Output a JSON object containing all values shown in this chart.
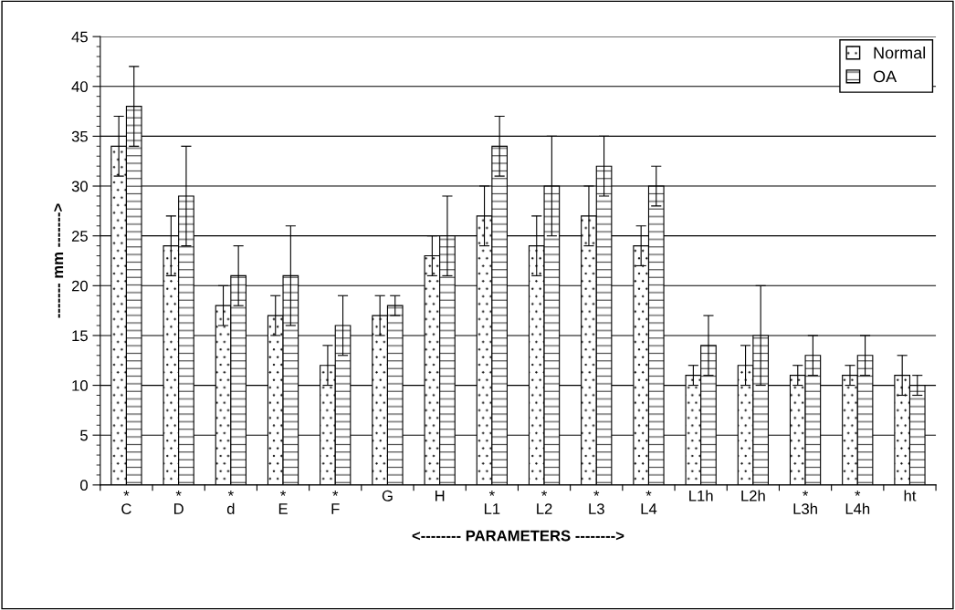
{
  "chart_data": {
    "type": "bar",
    "xlabel": "<-------- PARAMETERS -------->",
    "ylabel": "------- mm ------->",
    "categories": [
      "*\nC",
      "*\nD",
      "*\nd",
      "*\nE",
      "*\nF",
      "G",
      "H",
      "*\nL1",
      "*\nL2",
      "*\nL3",
      "*\nL4",
      "L1h",
      "L2h",
      "*\nL3h",
      "*\nL4h",
      "ht"
    ],
    "series": [
      {
        "name": "Normal",
        "color": "#000000",
        "values": [
          34,
          24,
          18,
          17,
          12,
          17,
          23,
          27,
          24,
          27,
          24,
          11,
          12,
          11,
          11,
          11
        ],
        "errors": [
          3,
          3,
          2,
          2,
          2,
          2,
          2,
          3,
          3,
          3,
          2,
          1,
          2,
          1,
          1,
          2
        ]
      },
      {
        "name": "OA",
        "color": "#000000",
        "values": [
          38,
          29,
          21,
          21,
          16,
          18,
          25,
          34,
          30,
          32,
          30,
          14,
          15,
          13,
          13,
          10
        ],
        "errors": [
          4,
          5,
          3,
          5,
          3,
          1,
          4,
          3,
          5,
          3,
          2,
          3,
          5,
          2,
          2,
          1
        ]
      }
    ],
    "ylim": [
      0,
      45
    ],
    "yticks": [
      0,
      5,
      10,
      15,
      20,
      25,
      30,
      35,
      40,
      45
    ],
    "grid": "y",
    "legend": "top right"
  }
}
